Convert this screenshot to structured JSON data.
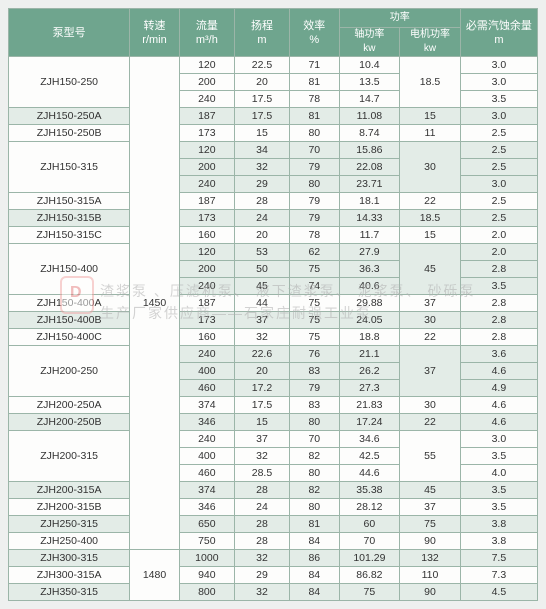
{
  "headers": {
    "model": "泵型号",
    "speed": "转速",
    "speed_unit": "r/min",
    "flow": "流量",
    "flow_unit": "m³/h",
    "head": "扬程",
    "head_unit": "m",
    "eff": "效率",
    "eff_unit": "%",
    "power": "功率",
    "shaft": "轴功率",
    "motor": "电机功率",
    "kw": "kw",
    "npsh": "必需汽蚀余量",
    "npsh_unit": "m"
  },
  "watermark": {
    "line1": "渣浆泵 、压滤机泵、 液下渣浆泵、 泥浆泵、 砂砾泵",
    "line2": "生产厂家供应商——石家庄耐强工业泵"
  },
  "speeds": {
    "s1": "1450",
    "s2": "1480"
  },
  "rows": [
    {
      "model": "ZJH150-250",
      "f": "120",
      "h": "22.5",
      "e": "71",
      "sp": "10.4",
      "mp": "",
      "np": "3.0"
    },
    {
      "f": "200",
      "h": "20",
      "e": "81",
      "sp": "13.5",
      "mp": "18.5",
      "np": "3.0"
    },
    {
      "f": "240",
      "h": "17.5",
      "e": "78",
      "sp": "14.7",
      "mp": "",
      "np": "3.5"
    },
    {
      "model": "ZJH150-250A",
      "f": "187",
      "h": "17.5",
      "e": "81",
      "sp": "11.08",
      "mp": "15",
      "np": "3.0",
      "alt": true
    },
    {
      "model": "ZJH150-250B",
      "f": "173",
      "h": "15",
      "e": "80",
      "sp": "8.74",
      "mp": "11",
      "np": "2.5"
    },
    {
      "model": "ZJH150-315",
      "f": "120",
      "h": "34",
      "e": "70",
      "sp": "15.86",
      "mp": "",
      "np": "2.5",
      "alt": true
    },
    {
      "f": "200",
      "h": "32",
      "e": "79",
      "sp": "22.08",
      "mp": "30",
      "np": "2.5",
      "alt": true
    },
    {
      "f": "240",
      "h": "29",
      "e": "80",
      "sp": "23.71",
      "mp": "",
      "np": "3.0",
      "alt": true
    },
    {
      "model": "ZJH150-315A",
      "f": "187",
      "h": "28",
      "e": "79",
      "sp": "18.1",
      "mp": "22",
      "np": "2.5"
    },
    {
      "model": "ZJH150-315B",
      "f": "173",
      "h": "24",
      "e": "79",
      "sp": "14.33",
      "mp": "18.5",
      "np": "2.5",
      "alt": true
    },
    {
      "model": "ZJH150-315C",
      "f": "160",
      "h": "20",
      "e": "78",
      "sp": "11.7",
      "mp": "15",
      "np": "2.0"
    },
    {
      "model": "ZJH150-400",
      "f": "120",
      "h": "53",
      "e": "62",
      "sp": "27.9",
      "mp": "",
      "np": "2.0",
      "alt": true
    },
    {
      "f": "200",
      "h": "50",
      "e": "75",
      "sp": "36.3",
      "mp": "45",
      "np": "2.8",
      "alt": true
    },
    {
      "f": "240",
      "h": "45",
      "e": "74",
      "sp": "40.6",
      "mp": "",
      "np": "3.5",
      "alt": true
    },
    {
      "model": "ZJH150-400A",
      "f": "187",
      "h": "44",
      "e": "75",
      "sp": "29.88",
      "mp": "37",
      "np": "2.8"
    },
    {
      "model": "ZJH150-400B",
      "f": "173",
      "h": "37",
      "e": "75",
      "sp": "24.05",
      "mp": "30",
      "np": "2.8",
      "alt": true
    },
    {
      "model": "ZJH150-400C",
      "f": "160",
      "h": "32",
      "e": "75",
      "sp": "18.8",
      "mp": "22",
      "np": "2.8"
    },
    {
      "model": "ZJH200-250",
      "f": "240",
      "h": "22.6",
      "e": "76",
      "sp": "21.1",
      "mp": "",
      "np": "3.6",
      "alt": true
    },
    {
      "f": "400",
      "h": "20",
      "e": "83",
      "sp": "26.2",
      "mp": "37",
      "np": "4.6",
      "alt": true
    },
    {
      "f": "460",
      "h": "17.2",
      "e": "79",
      "sp": "27.3",
      "mp": "",
      "np": "4.9",
      "alt": true
    },
    {
      "model": "ZJH200-250A",
      "f": "374",
      "h": "17.5",
      "e": "83",
      "sp": "21.83",
      "mp": "30",
      "np": "4.6"
    },
    {
      "model": "ZJH200-250B",
      "f": "346",
      "h": "15",
      "e": "80",
      "sp": "17.24",
      "mp": "22",
      "np": "4.6",
      "alt": true
    },
    {
      "model": "ZJH200-315",
      "f": "240",
      "h": "37",
      "e": "70",
      "sp": "34.6",
      "mp": "",
      "np": "3.0"
    },
    {
      "f": "400",
      "h": "32",
      "e": "82",
      "sp": "42.5",
      "mp": "55",
      "np": "3.5"
    },
    {
      "f": "460",
      "h": "28.5",
      "e": "80",
      "sp": "44.6",
      "mp": "",
      "np": "4.0"
    },
    {
      "model": "ZJH200-315A",
      "f": "374",
      "h": "28",
      "e": "82",
      "sp": "35.38",
      "mp": "45",
      "np": "3.5",
      "alt": true
    },
    {
      "model": "ZJH200-315B",
      "f": "346",
      "h": "24",
      "e": "80",
      "sp": "28.12",
      "mp": "37",
      "np": "3.5"
    },
    {
      "model": "ZJH250-315",
      "f": "650",
      "h": "28",
      "e": "81",
      "sp": "60",
      "mp": "75",
      "np": "3.8",
      "alt": true
    },
    {
      "model": "ZJH250-400",
      "f": "750",
      "h": "28",
      "e": "84",
      "sp": "70",
      "mp": "90",
      "np": "3.8"
    },
    {
      "model": "ZJH300-315",
      "f": "1000",
      "h": "32",
      "e": "86",
      "sp": "101.29",
      "mp": "132",
      "np": "7.5",
      "alt": true
    },
    {
      "model": "ZJH300-315A",
      "f": "940",
      "h": "29",
      "e": "84",
      "sp": "86.82",
      "mp": "110",
      "np": "7.3"
    },
    {
      "model": "ZJH350-315",
      "f": "800",
      "h": "32",
      "e": "84",
      "sp": "75",
      "mp": "90",
      "np": "4.5",
      "alt": true
    }
  ]
}
